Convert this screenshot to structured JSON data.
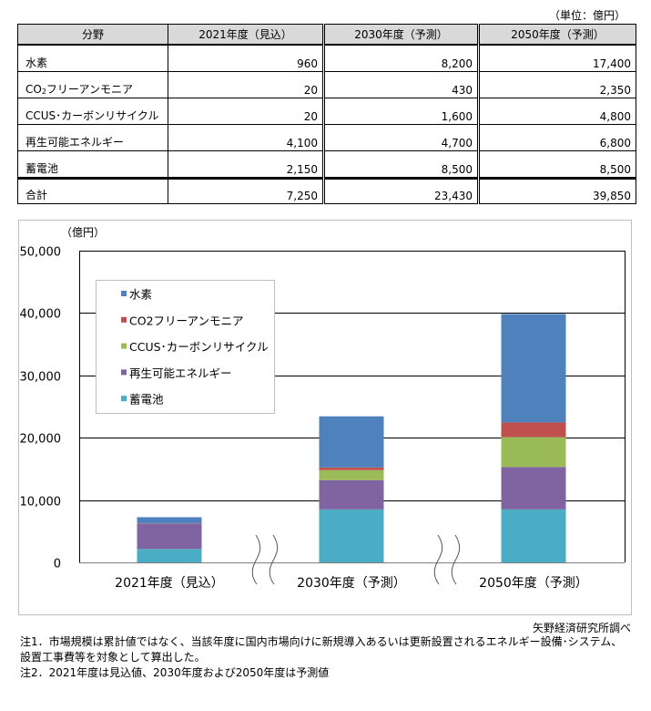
{
  "table": {
    "unit": "（単位：億円）",
    "headers": [
      "分野",
      "2021年度（見込）",
      "2030年度（予測）",
      "2050年度（予測）"
    ],
    "rows": [
      {
        "label": "水素",
        "values": [
          "960",
          "8,200",
          "17,400"
        ]
      },
      {
        "label_prefix": "CO",
        "label_sub": "2",
        "label_suffix": "フリーアンモニア",
        "values": [
          "20",
          "430",
          "2,350"
        ]
      },
      {
        "label": "CCUS･カーボンリサイクル",
        "values": [
          "20",
          "1,600",
          "4,800"
        ]
      },
      {
        "label": "再生可能エネルギー",
        "values": [
          "4,100",
          "4,700",
          "6,800"
        ]
      },
      {
        "label": "蓄電池",
        "values": [
          "2,150",
          "8,500",
          "8,500"
        ]
      }
    ],
    "total": {
      "label": "合計",
      "values": [
        "7,250",
        "23,430",
        "39,850"
      ]
    }
  },
  "chart_data": {
    "type": "bar",
    "stacked": true,
    "title": "",
    "ylabel": "（億円）",
    "xlabel": "",
    "ylim": [
      0,
      50000
    ],
    "yticks": [
      0,
      10000,
      20000,
      30000,
      40000,
      50000
    ],
    "ytick_labels": [
      "0",
      "10,000",
      "20,000",
      "30,000",
      "40,000",
      "50,000"
    ],
    "grid": true,
    "legend_position": "top-left",
    "categories": [
      "2021年度（見込）",
      "2030年度（予測）",
      "2050年度（予測）"
    ],
    "axis_breaks": [
      "between 2021年度（見込） and 2030年度（予測）",
      "between 2030年度（予測） and 2050年度（予測）"
    ],
    "series": [
      {
        "name": "蓄電池",
        "color": "#4bacc6",
        "values": [
          2150,
          8500,
          8500
        ]
      },
      {
        "name": "再生可能エネルギー",
        "color": "#8064a2",
        "values": [
          4100,
          4700,
          6800
        ]
      },
      {
        "name": "CCUS･カーボンリサイクル",
        "color": "#9bbb59",
        "values": [
          20,
          1600,
          4800
        ]
      },
      {
        "name": "CO2フリーアンモニア",
        "color": "#c0504d",
        "values": [
          20,
          430,
          2350
        ]
      },
      {
        "name": "水素",
        "color": "#4f81bd",
        "values": [
          960,
          8200,
          17400
        ]
      }
    ],
    "legend_order": [
      "水素",
      "CO2フリーアンモニア",
      "CCUS･カーボンリサイクル",
      "再生可能エネルギー",
      "蓄電池"
    ]
  },
  "source": "矢野経済研究所調べ",
  "notes": [
    "注1．市場規模は累計値ではなく、当該年度に国内市場向けに新規導入あるいは更新設置されるエネルギー設備･システム、",
    "設置工事費等を対象として算出した。",
    "注2．2021年度は見込値、2030年度および2050年度は予測値"
  ]
}
